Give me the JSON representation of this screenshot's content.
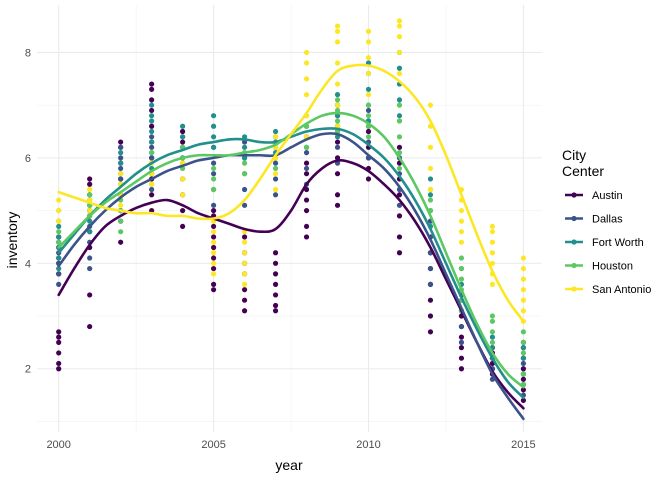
{
  "chart_data": {
    "type": "scatter",
    "title": "",
    "xlabel": "year",
    "ylabel": "inventory",
    "xlim": [
      1999.3,
      2015.6
    ],
    "ylim": [
      0.8,
      8.9
    ],
    "x_ticks": [
      2000,
      2005,
      2010,
      2015
    ],
    "y_ticks": [
      2,
      4,
      6,
      8
    ],
    "grid": true,
    "legend": {
      "title_lines": [
        "City",
        "Center"
      ],
      "position": "right"
    },
    "series": [
      {
        "name": "Austin",
        "color": "#440154",
        "smooth": [
          [
            2000,
            3.4
          ],
          [
            2000.5,
            3.9
          ],
          [
            2001,
            4.35
          ],
          [
            2001.5,
            4.7
          ],
          [
            2002,
            4.9
          ],
          [
            2002.5,
            5.05
          ],
          [
            2003,
            5.15
          ],
          [
            2003.5,
            5.2
          ],
          [
            2004,
            5.1
          ],
          [
            2004.5,
            4.95
          ],
          [
            2005,
            4.85
          ],
          [
            2005.5,
            4.75
          ],
          [
            2006,
            4.65
          ],
          [
            2006.5,
            4.6
          ],
          [
            2007,
            4.65
          ],
          [
            2007.5,
            5.0
          ],
          [
            2008,
            5.5
          ],
          [
            2008.5,
            5.8
          ],
          [
            2009,
            5.95
          ],
          [
            2009.5,
            5.9
          ],
          [
            2010,
            5.75
          ],
          [
            2010.5,
            5.5
          ],
          [
            2011,
            5.2
          ],
          [
            2011.5,
            4.8
          ],
          [
            2012,
            4.3
          ],
          [
            2012.5,
            3.7
          ],
          [
            2013,
            3.1
          ],
          [
            2013.5,
            2.5
          ],
          [
            2014,
            1.95
          ],
          [
            2014.5,
            1.55
          ],
          [
            2015,
            1.25
          ]
        ],
        "points": {
          "2000": [
            2.0,
            2.1,
            2.3,
            2.5,
            2.6,
            2.7,
            3.8,
            4.0,
            4.1,
            4.3,
            4.5
          ],
          "2001": [
            2.8,
            3.4,
            4.3,
            4.6,
            5.0,
            5.3,
            5.5,
            5.6
          ],
          "2002": [
            4.4,
            4.8,
            5.0,
            5.3,
            5.6,
            5.9,
            6.2,
            6.3
          ],
          "2003": [
            5.0,
            5.3,
            5.6,
            6.0,
            6.3,
            6.6,
            6.9,
            7.1,
            7.3,
            7.4
          ],
          "2004": [
            4.7,
            5.0,
            5.3,
            5.6,
            6.0,
            6.3,
            6.5
          ],
          "2005": [
            3.5,
            3.6,
            3.9,
            4.1,
            4.3,
            4.5,
            4.7,
            4.9,
            5.0
          ],
          "2006": [
            3.1,
            3.3,
            3.5,
            3.8,
            4.0,
            4.2,
            4.5
          ],
          "2007": [
            3.1,
            3.2,
            3.4,
            3.6,
            3.8,
            4.0,
            4.2
          ],
          "2008": [
            4.5,
            4.7,
            5.0,
            5.2,
            5.4,
            5.7,
            5.9
          ],
          "2009": [
            5.1,
            5.3,
            5.7,
            6.0,
            6.3,
            6.6,
            7.0
          ],
          "2010": [
            5.6,
            5.8,
            6.0,
            6.2,
            6.5,
            6.7
          ],
          "2011": [
            4.2,
            4.5,
            4.9,
            5.3,
            5.6,
            5.9,
            6.2
          ],
          "2012": [
            2.7,
            3.0,
            3.3,
            3.6,
            3.9,
            4.2,
            4.5
          ],
          "2013": [
            2.0,
            2.2,
            2.4,
            2.6,
            2.8,
            3.0
          ],
          "2014": [
            1.9,
            2.0,
            2.1,
            2.2,
            2.3,
            2.4
          ],
          "2015": [
            1.4,
            1.6,
            1.8,
            2.0,
            2.2,
            2.4,
            2.5
          ]
        }
      },
      {
        "name": "Dallas",
        "color": "#3B528B",
        "smooth": [
          [
            2000,
            3.95
          ],
          [
            2000.5,
            4.35
          ],
          [
            2001,
            4.7
          ],
          [
            2001.5,
            5.0
          ],
          [
            2002,
            5.25
          ],
          [
            2002.5,
            5.45
          ],
          [
            2003,
            5.6
          ],
          [
            2003.5,
            5.75
          ],
          [
            2004,
            5.85
          ],
          [
            2004.5,
            5.95
          ],
          [
            2005,
            6.0
          ],
          [
            2005.5,
            6.05
          ],
          [
            2006,
            6.05
          ],
          [
            2006.5,
            6.05
          ],
          [
            2007,
            6.05
          ],
          [
            2007.5,
            6.2
          ],
          [
            2008,
            6.35
          ],
          [
            2008.5,
            6.45
          ],
          [
            2009,
            6.45
          ],
          [
            2009.5,
            6.3
          ],
          [
            2010,
            6.05
          ],
          [
            2010.5,
            5.8
          ],
          [
            2011,
            5.45
          ],
          [
            2011.5,
            5.0
          ],
          [
            2012,
            4.45
          ],
          [
            2012.5,
            3.8
          ],
          [
            2013,
            3.15
          ],
          [
            2013.5,
            2.5
          ],
          [
            2014,
            1.9
          ],
          [
            2014.5,
            1.45
          ],
          [
            2015,
            1.05
          ]
        ],
        "points": {
          "2000": [
            3.6,
            3.8,
            4.0,
            4.2,
            4.4
          ],
          "2001": [
            3.9,
            4.1,
            4.4,
            4.7,
            4.9,
            5.1
          ],
          "2002": [
            5.0,
            5.3,
            5.6,
            5.8,
            6.0,
            6.2
          ],
          "2003": [
            5.4,
            5.7,
            6.0,
            6.2,
            6.4
          ],
          "2004": [
            5.6,
            5.9,
            6.2,
            6.4
          ],
          "2005": [
            5.1,
            5.4,
            5.7,
            5.9,
            6.2
          ],
          "2006": [
            5.1,
            5.4,
            5.7,
            6.0,
            6.3
          ],
          "2007": [
            5.3,
            5.6,
            5.9,
            6.2,
            6.4
          ],
          "2008": [
            5.5,
            5.8,
            6.1,
            6.4
          ],
          "2009": [
            5.9,
            6.2,
            6.5,
            6.8
          ],
          "2010": [
            6.0,
            6.3,
            6.6,
            6.9
          ],
          "2011": [
            5.1,
            5.4,
            5.7,
            6.0
          ],
          "2012": [
            3.6,
            3.9,
            4.2,
            4.5,
            4.8
          ],
          "2013": [
            2.5,
            2.8,
            3.1,
            3.4
          ],
          "2014": [
            1.8,
            2.0,
            2.2
          ],
          "2015": [
            1.5,
            1.7,
            1.9,
            2.1
          ]
        }
      },
      {
        "name": "Fort Worth",
        "color": "#21908C",
        "smooth": [
          [
            2000,
            4.2
          ],
          [
            2000.5,
            4.55
          ],
          [
            2001,
            4.9
          ],
          [
            2001.5,
            5.2
          ],
          [
            2002,
            5.45
          ],
          [
            2002.5,
            5.7
          ],
          [
            2003,
            5.9
          ],
          [
            2003.5,
            6.05
          ],
          [
            2004,
            6.15
          ],
          [
            2004.5,
            6.25
          ],
          [
            2005,
            6.3
          ],
          [
            2005.5,
            6.35
          ],
          [
            2006,
            6.35
          ],
          [
            2006.5,
            6.3
          ],
          [
            2007,
            6.3
          ],
          [
            2007.5,
            6.4
          ],
          [
            2008,
            6.5
          ],
          [
            2008.5,
            6.55
          ],
          [
            2009,
            6.55
          ],
          [
            2009.5,
            6.45
          ],
          [
            2010,
            6.25
          ],
          [
            2010.5,
            6.0
          ],
          [
            2011,
            5.65
          ],
          [
            2011.5,
            5.2
          ],
          [
            2012,
            4.65
          ],
          [
            2012.5,
            4.0
          ],
          [
            2013,
            3.35
          ],
          [
            2013.5,
            2.75
          ],
          [
            2014,
            2.2
          ],
          [
            2014.5,
            1.75
          ],
          [
            2015,
            1.45
          ]
        ],
        "points": {
          "2000": [
            3.9,
            4.1,
            4.3,
            4.5,
            4.7
          ],
          "2001": [
            4.6,
            4.8,
            5.0,
            5.2
          ],
          "2002": [
            5.3,
            5.5,
            5.7,
            5.9,
            6.1
          ],
          "2003": [
            5.8,
            6.1,
            6.3,
            6.5,
            6.7,
            6.8,
            7.0
          ],
          "2004": [
            6.0,
            6.2,
            6.4,
            6.6
          ],
          "2005": [
            6.2,
            6.4,
            6.6,
            6.8
          ],
          "2006": [
            6.0,
            6.2,
            6.4
          ],
          "2007": [
            6.1,
            6.3,
            6.5
          ],
          "2008": [
            6.2,
            6.4,
            6.6
          ],
          "2009": [
            6.4,
            6.6,
            6.8,
            7.0,
            7.2
          ],
          "2010": [
            6.7,
            7.0,
            7.3,
            7.6,
            7.8
          ],
          "2011": [
            6.8,
            7.1,
            7.4,
            7.7,
            8.0
          ],
          "2012": [
            4.7,
            5.0,
            5.3,
            5.6
          ],
          "2013": [
            3.3,
            3.6,
            3.9
          ],
          "2014": [
            2.2,
            2.4,
            2.6
          ],
          "2015": [
            1.7,
            1.9,
            2.2,
            2.4
          ]
        }
      },
      {
        "name": "Houston",
        "color": "#5DC863",
        "smooth": [
          [
            2000,
            4.3
          ],
          [
            2000.5,
            4.6
          ],
          [
            2001,
            4.9
          ],
          [
            2001.5,
            5.15
          ],
          [
            2002,
            5.35
          ],
          [
            2002.5,
            5.55
          ],
          [
            2003,
            5.75
          ],
          [
            2003.5,
            5.9
          ],
          [
            2004,
            6.0
          ],
          [
            2004.5,
            6.05
          ],
          [
            2005,
            6.05
          ],
          [
            2005.5,
            6.05
          ],
          [
            2006,
            6.1
          ],
          [
            2006.5,
            6.15
          ],
          [
            2007,
            6.25
          ],
          [
            2007.5,
            6.45
          ],
          [
            2008,
            6.65
          ],
          [
            2008.5,
            6.8
          ],
          [
            2009,
            6.85
          ],
          [
            2009.5,
            6.8
          ],
          [
            2010,
            6.65
          ],
          [
            2010.5,
            6.4
          ],
          [
            2011,
            6.0
          ],
          [
            2011.5,
            5.5
          ],
          [
            2012,
            4.9
          ],
          [
            2012.5,
            4.2
          ],
          [
            2013,
            3.5
          ],
          [
            2013.5,
            2.85
          ],
          [
            2014,
            2.3
          ],
          [
            2014.5,
            1.9
          ],
          [
            2015,
            1.65
          ]
        ],
        "points": {
          "2000": [
            4.4,
            4.6,
            4.8,
            5.0
          ],
          "2001": [
            4.9,
            5.1,
            5.3
          ],
          "2002": [
            4.6,
            4.8,
            5.0,
            5.2
          ],
          "2003": [
            5.5,
            5.7,
            5.9,
            6.1
          ],
          "2004": [
            5.6,
            5.8,
            6.0,
            6.2
          ],
          "2005": [
            5.4,
            5.6,
            5.8
          ],
          "2006": [
            5.7,
            5.9,
            6.1
          ],
          "2007": [
            5.8,
            6.0,
            6.2,
            6.4
          ],
          "2008": [
            6.2,
            6.4,
            6.6,
            6.8
          ],
          "2009": [
            6.5,
            6.7,
            6.9,
            7.1
          ],
          "2010": [
            6.4,
            6.6,
            6.8,
            7.0
          ],
          "2011": [
            5.8,
            6.1,
            6.4,
            6.7,
            7.0
          ],
          "2012": [
            5.0,
            5.2,
            5.4
          ],
          "2013": [
            3.1,
            3.3,
            3.5,
            3.7,
            3.9,
            4.1
          ],
          "2014": [
            2.5,
            2.7,
            2.9,
            3.0
          ],
          "2015": [
            1.7,
            1.9,
            2.3,
            2.5,
            2.7
          ]
        }
      },
      {
        "name": "San Antonio",
        "color": "#FDE725",
        "smooth": [
          [
            2000,
            5.35
          ],
          [
            2000.5,
            5.25
          ],
          [
            2001,
            5.15
          ],
          [
            2001.5,
            5.05
          ],
          [
            2002,
            5.0
          ],
          [
            2002.5,
            4.95
          ],
          [
            2003,
            4.95
          ],
          [
            2003.5,
            4.9
          ],
          [
            2004,
            4.9
          ],
          [
            2004.5,
            4.85
          ],
          [
            2005,
            4.85
          ],
          [
            2005.5,
            4.95
          ],
          [
            2006,
            5.2
          ],
          [
            2006.5,
            5.6
          ],
          [
            2007,
            6.05
          ],
          [
            2007.5,
            6.45
          ],
          [
            2008,
            6.85
          ],
          [
            2008.5,
            7.3
          ],
          [
            2009,
            7.65
          ],
          [
            2009.5,
            7.75
          ],
          [
            2010,
            7.75
          ],
          [
            2010.5,
            7.65
          ],
          [
            2011,
            7.45
          ],
          [
            2011.5,
            7.15
          ],
          [
            2012,
            6.7
          ],
          [
            2012.5,
            6.05
          ],
          [
            2013,
            5.3
          ],
          [
            2013.5,
            4.55
          ],
          [
            2014,
            3.85
          ],
          [
            2014.5,
            3.3
          ],
          [
            2015,
            2.9
          ]
        ],
        "points": {
          "2000": [
            4.8,
            5.0,
            5.2
          ],
          "2001": [
            5.0,
            5.2,
            5.4
          ],
          "2002": [
            5.1,
            5.3,
            5.5,
            5.7
          ],
          "2003": [
            5.5,
            5.7,
            5.9
          ],
          "2004": [
            5.3,
            5.6,
            5.9
          ],
          "2005": [
            3.8,
            4.0,
            4.2,
            4.4,
            4.6,
            4.8
          ],
          "2006": [
            3.6,
            3.8,
            4.0,
            4.2,
            4.4,
            4.6
          ],
          "2007": [
            5.4,
            5.7,
            6.0,
            6.2,
            6.4
          ],
          "2008": [
            6.4,
            6.8,
            7.2,
            7.5,
            7.8,
            8.0
          ],
          "2009": [
            6.6,
            7.0,
            7.4,
            7.8,
            8.2,
            8.4,
            8.5
          ],
          "2010": [
            7.2,
            7.6,
            7.9,
            8.2,
            8.4
          ],
          "2011": [
            7.6,
            8.0,
            8.3,
            8.5,
            8.6
          ],
          "2012": [
            5.4,
            5.8,
            6.2,
            6.6,
            7.0
          ],
          "2013": [
            4.4,
            4.6,
            4.8,
            5.0,
            5.2,
            5.4
          ],
          "2014": [
            3.6,
            3.8,
            4.0,
            4.2,
            4.4,
            4.6,
            4.7
          ],
          "2015": [
            2.9,
            3.1,
            3.3,
            3.5,
            3.7,
            3.9,
            4.1
          ]
        }
      }
    ]
  }
}
